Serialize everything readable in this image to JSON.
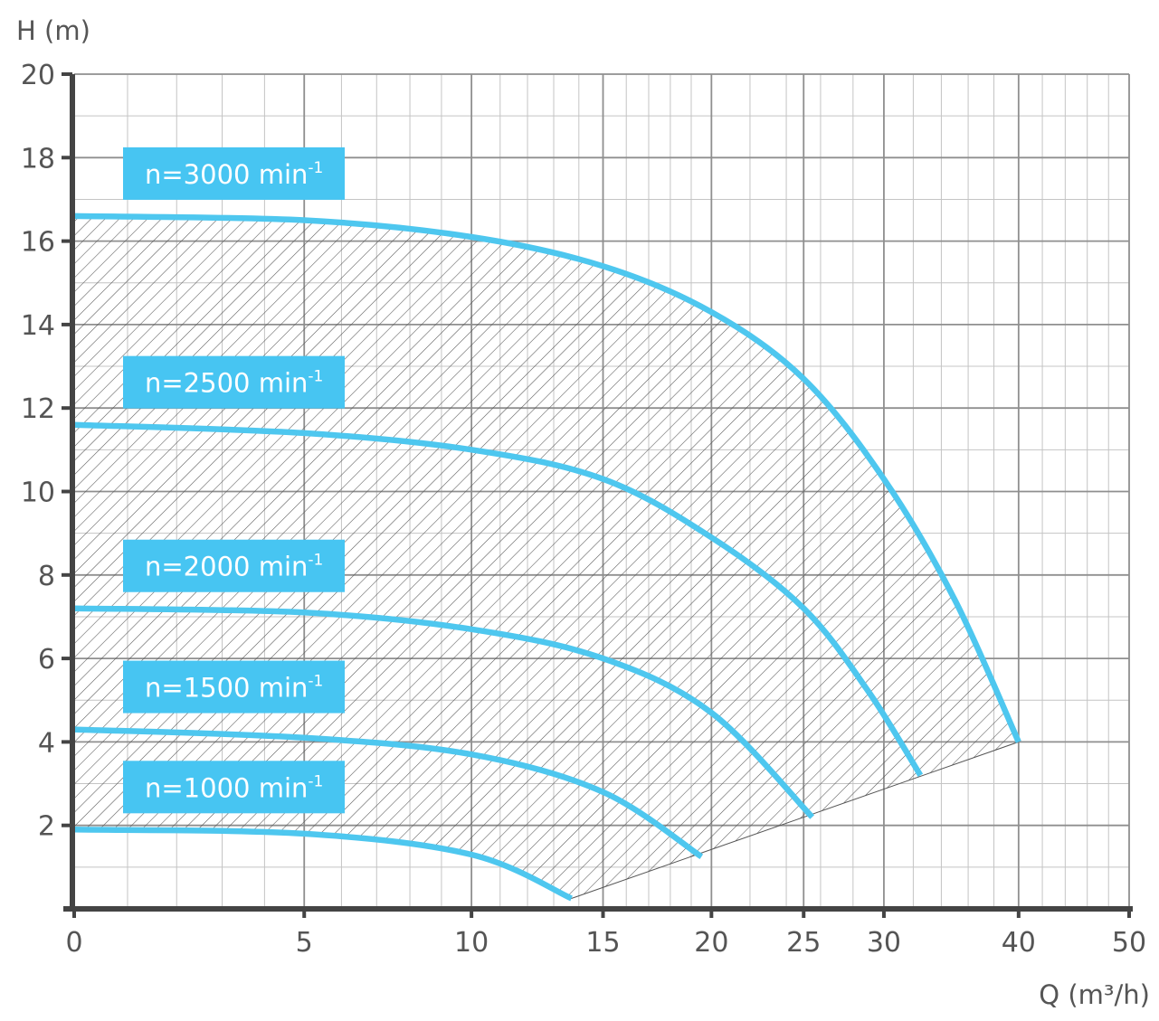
{
  "chart_data": {
    "type": "line",
    "xlabel": "Q (m³/h)",
    "ylabel": "H (m)",
    "x_axis": {
      "range": [
        0,
        50
      ],
      "scale": "logarithmic (offset)",
      "tick_labels": [
        "0",
        "5",
        "10",
        "15",
        "20",
        "25",
        "30",
        "40",
        "50"
      ]
    },
    "y_axis": {
      "range": [
        0,
        20
      ],
      "tick_labels": [
        "2",
        "4",
        "6",
        "8",
        "10",
        "12",
        "14",
        "16",
        "18",
        "20"
      ]
    },
    "grid": true,
    "operating_area": "hatched region between the n=1000 and n=3000 curves, bounded by the line through the curve end points",
    "colors": {
      "curve": "#4ec7ef",
      "label_bg": "#47c5f2",
      "grid": "#b3b3b3",
      "axis": "#444444",
      "hatch": "#555555"
    },
    "series": [
      {
        "name": "n=3000 min⁻¹",
        "label": "n=3000 min",
        "label_sup": "-1",
        "x": [
          0,
          5,
          10,
          15,
          20,
          25,
          30,
          35,
          40
        ],
        "y": [
          16.6,
          16.5,
          16.1,
          15.4,
          14.3,
          12.7,
          10.3,
          7.4,
          4.0
        ]
      },
      {
        "name": "n=2500 min⁻¹",
        "label": "n=2500 min",
        "label_sup": "-1",
        "x": [
          0,
          5,
          10,
          15,
          20,
          25,
          29,
          32.5
        ],
        "y": [
          11.6,
          11.4,
          11.0,
          10.3,
          8.9,
          7.2,
          5.2,
          3.2
        ]
      },
      {
        "name": "n=2000 min⁻¹",
        "label": "n=2000 min",
        "label_sup": "-1",
        "x": [
          0,
          5,
          10,
          15,
          20,
          25.5
        ],
        "y": [
          7.2,
          7.1,
          6.7,
          6.0,
          4.7,
          2.2
        ]
      },
      {
        "name": "n=1500 min⁻¹",
        "label": "n=1500 min",
        "label_sup": "-1",
        "x": [
          0,
          5,
          10,
          15,
          19.5
        ],
        "y": [
          4.3,
          4.1,
          3.7,
          2.8,
          1.25
        ]
      },
      {
        "name": "n=1000 min⁻¹",
        "label": "n=1000 min",
        "label_sup": "-1",
        "x": [
          0,
          5,
          10,
          13.7
        ],
        "y": [
          1.9,
          1.8,
          1.3,
          0.25
        ]
      }
    ]
  }
}
